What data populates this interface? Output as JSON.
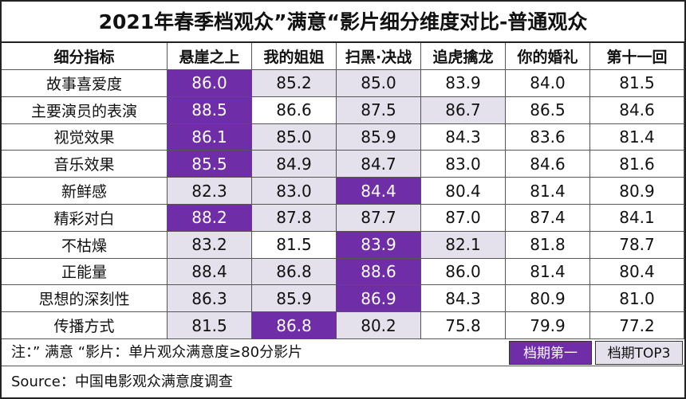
{
  "title": "2021年春季档观众”满意“影片细分维度对比-普通观众",
  "chart_data": {
    "type": "table",
    "title": "2021年春季档观众”满意“影片细分维度对比-普通观众",
    "corner_header": "细分指标",
    "columns": [
      "悬崖之上",
      "我的姐姐",
      "扫黑·决战",
      "追虎擒龙",
      "你的婚礼",
      "第十一回"
    ],
    "rows": [
      {
        "label": "故事喜爱度",
        "values": [
          "86.0",
          "85.2",
          "85.0",
          "83.9",
          "84.0",
          "81.5"
        ],
        "highlight": [
          "first",
          "top3",
          "top3",
          "",
          "",
          ""
        ]
      },
      {
        "label": "主要演员的表演",
        "values": [
          "88.5",
          "86.6",
          "87.5",
          "86.7",
          "86.5",
          "84.6"
        ],
        "highlight": [
          "first",
          "",
          "top3",
          "top3",
          "",
          ""
        ]
      },
      {
        "label": "视觉效果",
        "values": [
          "86.1",
          "85.0",
          "85.9",
          "84.3",
          "83.6",
          "81.4"
        ],
        "highlight": [
          "first",
          "top3",
          "top3",
          "",
          "",
          ""
        ]
      },
      {
        "label": "音乐效果",
        "values": [
          "85.5",
          "84.9",
          "84.7",
          "83.0",
          "84.6",
          "81.6"
        ],
        "highlight": [
          "first",
          "top3",
          "top3",
          "",
          "",
          ""
        ]
      },
      {
        "label": "新鲜感",
        "values": [
          "82.3",
          "83.0",
          "84.4",
          "80.4",
          "81.4",
          "80.9"
        ],
        "highlight": [
          "top3",
          "top3",
          "first",
          "",
          "",
          ""
        ]
      },
      {
        "label": "精彩对白",
        "values": [
          "88.2",
          "87.8",
          "87.7",
          "87.0",
          "87.4",
          "84.1"
        ],
        "highlight": [
          "first",
          "top3",
          "top3",
          "",
          "",
          ""
        ]
      },
      {
        "label": "不枯燥",
        "values": [
          "83.2",
          "81.5",
          "83.9",
          "82.1",
          "81.8",
          "78.7"
        ],
        "highlight": [
          "top3",
          "",
          "first",
          "top3",
          "",
          ""
        ]
      },
      {
        "label": "正能量",
        "values": [
          "88.4",
          "86.8",
          "88.6",
          "86.0",
          "81.4",
          "80.4"
        ],
        "highlight": [
          "top3",
          "top3",
          "first",
          "",
          "",
          ""
        ]
      },
      {
        "label": "思想的深刻性",
        "values": [
          "86.3",
          "85.9",
          "86.9",
          "84.3",
          "80.9",
          "81.0"
        ],
        "highlight": [
          "top3",
          "top3",
          "first",
          "",
          "",
          ""
        ]
      },
      {
        "label": "传播方式",
        "values": [
          "81.5",
          "86.8",
          "80.2",
          "75.8",
          "79.9",
          "77.2"
        ],
        "highlight": [
          "top3",
          "first",
          "top3",
          "",
          "",
          ""
        ]
      }
    ]
  },
  "note": "注：” 满意 “影片：单片观众满意度≥80分影片",
  "legend": {
    "first": "档期第一",
    "top3": "档期TOP3"
  },
  "source": "Source：中国电影观众满意度调查",
  "colors": {
    "first": "#6f2da8",
    "top3": "#e4e0ec"
  }
}
